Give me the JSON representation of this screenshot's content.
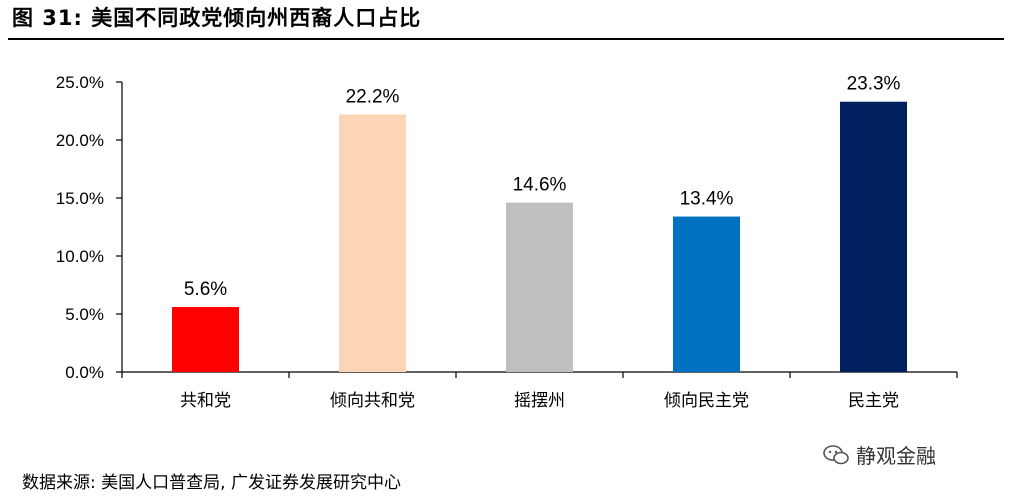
{
  "header": {
    "title": "图 31:  美国不同政党倾向州西裔人口占比"
  },
  "footer": {
    "source": "数据来源:  美国人口普查局,  广发证券发展研究中心",
    "watermark": "静观金融"
  },
  "chart_data": {
    "type": "bar",
    "categories": [
      "共和党",
      "倾向共和党",
      "摇摆州",
      "倾向民主党",
      "民主党"
    ],
    "values": [
      5.6,
      22.2,
      14.6,
      13.4,
      23.3
    ],
    "value_labels": [
      "5.6%",
      "22.2%",
      "14.6%",
      "13.4%",
      "23.3%"
    ],
    "bar_colors": [
      "#FF0000",
      "#FBD5B5",
      "#BFBFBF",
      "#0070C0",
      "#002060"
    ],
    "yticks": [
      "0.0%",
      "5.0%",
      "10.0%",
      "15.0%",
      "20.0%",
      "25.0%"
    ],
    "ytick_values": [
      0,
      5,
      10,
      15,
      20,
      25
    ],
    "ylim": [
      0,
      25
    ],
    "grid": false,
    "legend": "none",
    "title": "",
    "xlabel": "",
    "ylabel": ""
  }
}
